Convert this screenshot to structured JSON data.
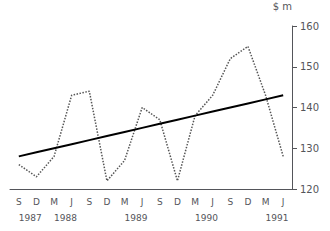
{
  "chart_data": {
    "type": "line",
    "categories": [
      "S",
      "D",
      "M",
      "J",
      "S",
      "D",
      "M",
      "J",
      "S",
      "D",
      "M",
      "J",
      "S",
      "D",
      "M",
      "J"
    ],
    "series": [
      {
        "color": "#555555",
        "line_style": "dotted",
        "values": [
          126,
          123,
          128,
          143,
          144,
          122,
          127,
          140,
          137,
          122,
          138,
          143,
          152,
          155,
          143,
          128
        ]
      },
      {
        "color": "#000000",
        "line_style": "solid",
        "values": [
          128,
          129,
          130,
          131,
          132,
          133,
          134,
          135,
          136,
          137,
          138,
          139,
          140,
          141,
          142,
          143
        ]
      }
    ],
    "annotations": [
      {
        "text": "1987",
        "x": 0
      },
      {
        "text": "1988",
        "x": 2
      },
      {
        "text": "1989",
        "x": 6
      },
      {
        "text": "1990",
        "x": 10
      },
      {
        "text": "1991",
        "x": 14
      }
    ],
    "ylabel": "$ m",
    "ylim": [
      120,
      160
    ],
    "yticks": [
      120,
      130,
      140,
      150,
      160
    ],
    "grid": false
  }
}
